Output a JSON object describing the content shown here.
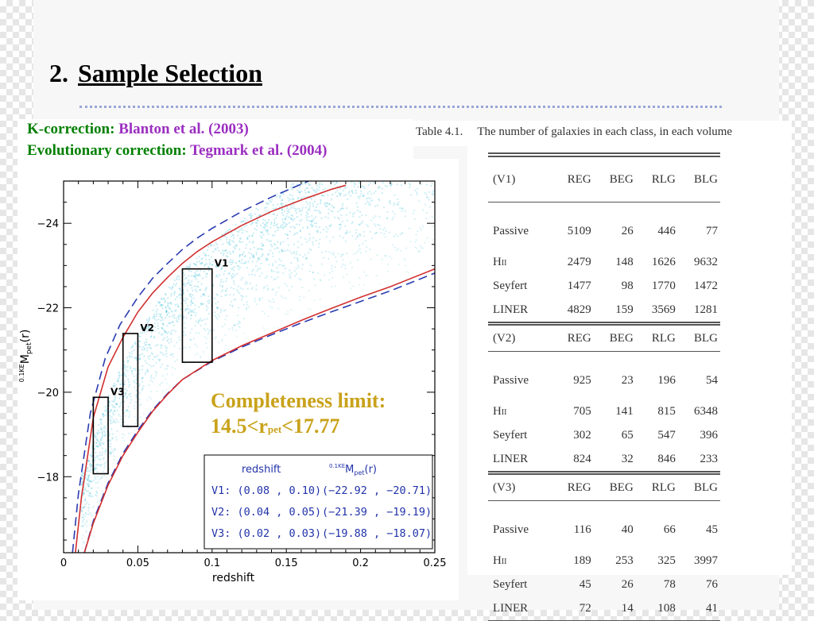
{
  "slide": {
    "title_number": "2.",
    "title_text": "Sample Selection",
    "notes": {
      "kcorr_label": "K-correction: ",
      "kcorr_ref": "Blanton et al. (2003)",
      "evol_label": "Evolutionary correction: ",
      "evol_ref": "Tegmark et al. (2004)"
    },
    "completeness": {
      "line1": "Completeness limit:",
      "line2_pre": "14.5<r",
      "line2_sub": "pet",
      "line2_post": "<17.77"
    }
  },
  "chart_data": {
    "type": "scatter",
    "xlabel": "redshift",
    "ylabel_prefix": "0.1KE",
    "ylabel_main": "M",
    "ylabel_sub": "pet",
    "ylabel_suffix": "(r)",
    "xlim": [
      0,
      0.25
    ],
    "ylim": [
      -16.2,
      -25
    ],
    "x_ticks": [
      0,
      0.05,
      0.1,
      0.15,
      0.2,
      0.25
    ],
    "x_tick_labels": [
      "0",
      "0.05",
      "0.1",
      "0.15",
      "0.2",
      "0.25"
    ],
    "y_ticks": [
      -24,
      -22,
      -20,
      -18
    ],
    "y_tick_labels": [
      "−24",
      "−22",
      "−20",
      "−18"
    ],
    "boxes": [
      {
        "name": "V1",
        "z": [
          0.08,
          0.1
        ],
        "M": [
          -22.92,
          -20.71
        ]
      },
      {
        "name": "V2",
        "z": [
          0.04,
          0.05
        ],
        "M": [
          -21.39,
          -19.19
        ]
      },
      {
        "name": "V3",
        "z": [
          0.02,
          0.03
        ],
        "M": [
          -19.88,
          -18.07
        ]
      }
    ],
    "curves": {
      "bright_red": [
        [
          0.008,
          -16.2
        ],
        [
          0.012,
          -17.5
        ],
        [
          0.02,
          -19.4
        ],
        [
          0.03,
          -20.6
        ],
        [
          0.04,
          -21.3
        ],
        [
          0.05,
          -21.9
        ],
        [
          0.06,
          -22.35
        ],
        [
          0.07,
          -22.72
        ],
        [
          0.08,
          -23.05
        ],
        [
          0.09,
          -23.33
        ],
        [
          0.1,
          -23.56
        ],
        [
          0.12,
          -23.95
        ],
        [
          0.14,
          -24.28
        ],
        [
          0.16,
          -24.55
        ],
        [
          0.18,
          -24.8
        ],
        [
          0.19,
          -24.9
        ]
      ],
      "bright_blue": [
        [
          0.006,
          -16.2
        ],
        [
          0.01,
          -17.6
        ],
        [
          0.018,
          -19.5
        ],
        [
          0.028,
          -20.8
        ],
        [
          0.038,
          -21.6
        ],
        [
          0.05,
          -22.25
        ],
        [
          0.06,
          -22.7
        ],
        [
          0.07,
          -23.05
        ],
        [
          0.08,
          -23.38
        ],
        [
          0.09,
          -23.65
        ],
        [
          0.1,
          -23.88
        ],
        [
          0.12,
          -24.28
        ],
        [
          0.14,
          -24.62
        ],
        [
          0.155,
          -24.85
        ],
        [
          0.165,
          -25.0
        ]
      ],
      "faint_red": [
        [
          0.014,
          -16.2
        ],
        [
          0.02,
          -16.9
        ],
        [
          0.03,
          -17.8
        ],
        [
          0.04,
          -18.5
        ],
        [
          0.05,
          -19.05
        ],
        [
          0.06,
          -19.55
        ],
        [
          0.07,
          -19.95
        ],
        [
          0.08,
          -20.3
        ],
        [
          0.1,
          -20.75
        ],
        [
          0.12,
          -21.1
        ],
        [
          0.14,
          -21.4
        ],
        [
          0.16,
          -21.7
        ],
        [
          0.18,
          -21.98
        ],
        [
          0.2,
          -22.25
        ],
        [
          0.22,
          -22.5
        ],
        [
          0.25,
          -22.92
        ]
      ],
      "faint_blue": [
        [
          0.014,
          -16.2
        ],
        [
          0.02,
          -16.95
        ],
        [
          0.03,
          -17.85
        ],
        [
          0.04,
          -18.55
        ],
        [
          0.05,
          -19.1
        ],
        [
          0.06,
          -19.58
        ],
        [
          0.07,
          -19.97
        ],
        [
          0.08,
          -20.3
        ],
        [
          0.1,
          -20.73
        ],
        [
          0.12,
          -21.07
        ],
        [
          0.14,
          -21.36
        ],
        [
          0.16,
          -21.64
        ],
        [
          0.18,
          -21.9
        ],
        [
          0.2,
          -22.15
        ],
        [
          0.22,
          -22.4
        ],
        [
          0.25,
          -22.82
        ]
      ]
    },
    "legend": {
      "col1_header": "redshift",
      "col2_header_prefix": "0.1KE",
      "col2_header_main": "M",
      "col2_header_sub": "pet",
      "col2_header_suffix": "(r)",
      "rows": [
        {
          "label": "V1: (0.08 , 0.10)",
          "mag": "(−22.92 , −20.71)"
        },
        {
          "label": "V2: (0.04 , 0.05)",
          "mag": "(−21.39 , −19.19)"
        },
        {
          "label": "V3: (0.02 , 0.03)",
          "mag": "(−19.88 , −18.07)"
        }
      ]
    },
    "colors": {
      "red": "#d23030",
      "blue": "#2a3bb0",
      "points": "#4cc4dc",
      "legend_text": "#2233aa"
    }
  },
  "table": {
    "caption_num": "Table 4.1.",
    "caption_text": "The number of galaxies in each class, in each volume",
    "columns": [
      "REG",
      "BEG",
      "RLG",
      "BLG"
    ],
    "volumes": [
      {
        "name": "(V1)",
        "rows": [
          {
            "label": "Passive",
            "values": [
              "5109",
              "26",
              "446",
              "77"
            ]
          },
          {
            "label": "H",
            "label_sc": "II",
            "values": [
              "2479",
              "148",
              "1626",
              "9632"
            ]
          },
          {
            "label": "Seyfert",
            "values": [
              "1477",
              "98",
              "1770",
              "1472"
            ]
          },
          {
            "label": "LINER",
            "values": [
              "4829",
              "159",
              "3569",
              "1281"
            ]
          }
        ]
      },
      {
        "name": "(V2)",
        "rows": [
          {
            "label": "Passive",
            "values": [
              "925",
              "23",
              "196",
              "54"
            ]
          },
          {
            "label": "H",
            "label_sc": "II",
            "values": [
              "705",
              "141",
              "815",
              "6348"
            ]
          },
          {
            "label": "Seyfert",
            "values": [
              "302",
              "65",
              "547",
              "396"
            ]
          },
          {
            "label": "LINER",
            "values": [
              "824",
              "32",
              "846",
              "233"
            ]
          }
        ]
      },
      {
        "name": "(V3)",
        "rows": [
          {
            "label": "Passive",
            "values": [
              "116",
              "40",
              "66",
              "45"
            ]
          },
          {
            "label": "H",
            "label_sc": "II",
            "values": [
              "189",
              "253",
              "325",
              "3997"
            ]
          },
          {
            "label": "Seyfert",
            "values": [
              "45",
              "26",
              "78",
              "76"
            ]
          },
          {
            "label": "LINER",
            "values": [
              "72",
              "14",
              "108",
              "41"
            ]
          }
        ]
      }
    ]
  }
}
